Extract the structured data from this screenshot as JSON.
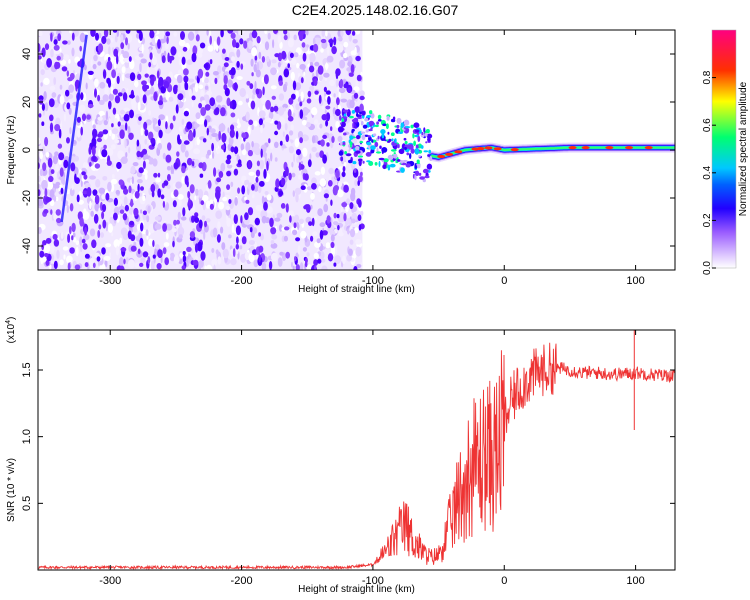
{
  "title": "C2E4.2025.148.02.16.G07",
  "chart_data": [
    {
      "type": "heatmap",
      "xlabel": "Height of straight line (km)",
      "ylabel": "Frequency (Hz)",
      "xlim": [
        -355,
        130
      ],
      "ylim": [
        -50,
        50
      ],
      "xticks": [
        -300,
        -200,
        -100,
        0,
        100
      ],
      "yticks": [
        -40,
        -20,
        0,
        20,
        40
      ],
      "colorbar": {
        "label": "Normalized spectral amplitude",
        "range": [
          0.0,
          1.0
        ],
        "ticks": [
          0.0,
          0.2,
          0.4,
          0.6,
          0.8
        ],
        "colormap": [
          "#ffffff",
          "#dcc6ff",
          "#7b3cff",
          "#2200ff",
          "#00c8ff",
          "#00ff70",
          "#ffff00",
          "#ff3000",
          "#ff0080"
        ]
      },
      "features": {
        "noise_region_x": [
          -355,
          -108
        ],
        "transition_region_x": [
          -125,
          -50
        ],
        "signal_band_x": [
          -60,
          130
        ],
        "signal_band_center_hz": [
          [
            -125,
            6
          ],
          [
            -100,
            5
          ],
          [
            -80,
            2
          ],
          [
            -60,
            -2
          ],
          [
            -50,
            -3
          ],
          [
            -30,
            0
          ],
          [
            -10,
            1
          ],
          [
            0,
            0
          ],
          [
            50,
            1
          ],
          [
            130,
            1
          ]
        ]
      }
    },
    {
      "type": "line",
      "xlabel": "Height of straight line (km)",
      "ylabel": "SNR (10 * v/v)",
      "yscale_label": "(x10",
      "yscale_exp": "4",
      "xlim": [
        -355,
        130
      ],
      "ylim": [
        0,
        1.8
      ],
      "xticks": [
        -300,
        -200,
        -100,
        0,
        100
      ],
      "yticks": [
        0.5,
        1.0,
        1.5
      ],
      "color": "#ee3333",
      "series": [
        {
          "x": [
            -355,
            -120,
            -100,
            -90,
            -80,
            -75,
            -70,
            -65,
            -60,
            -55,
            -50,
            -45,
            -40,
            -35,
            -30,
            -25,
            -20,
            -15,
            -10,
            -5,
            0,
            5,
            10,
            20,
            30,
            40,
            50,
            60,
            70,
            80,
            90,
            100,
            110,
            120,
            130
          ],
          "y": [
            0.02,
            0.02,
            0.04,
            0.15,
            0.3,
            0.35,
            0.25,
            0.18,
            0.12,
            0.1,
            0.12,
            0.25,
            0.4,
            0.55,
            0.7,
            0.8,
            0.85,
            0.9,
            0.9,
            0.95,
            1.1,
            1.25,
            1.35,
            1.45,
            1.5,
            1.52,
            1.5,
            1.48,
            1.48,
            1.47,
            1.47,
            1.48,
            1.47,
            1.46,
            1.46
          ]
        }
      ]
    }
  ]
}
